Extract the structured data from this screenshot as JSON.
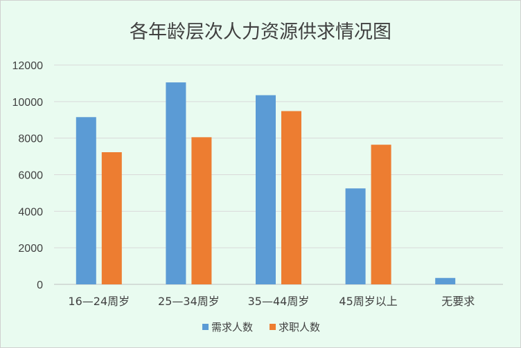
{
  "chart_data": {
    "type": "bar",
    "title": "各年龄层次人力资源供求情况图",
    "categories": [
      "16—24周岁",
      "25—34周岁",
      "35—44周岁",
      "45周岁以上",
      "无要求"
    ],
    "series": [
      {
        "name": "需求人数",
        "color": "#5b9bd5",
        "values": [
          9150,
          11050,
          10350,
          5250,
          350
        ]
      },
      {
        "name": "求职人数",
        "color": "#ed7d31",
        "values": [
          7230,
          8050,
          9480,
          7640,
          0
        ]
      }
    ],
    "ylim": [
      0,
      12000
    ],
    "yticks": [
      0,
      2000,
      4000,
      6000,
      8000,
      10000,
      12000
    ],
    "grid": true,
    "legend_position": "bottom"
  }
}
